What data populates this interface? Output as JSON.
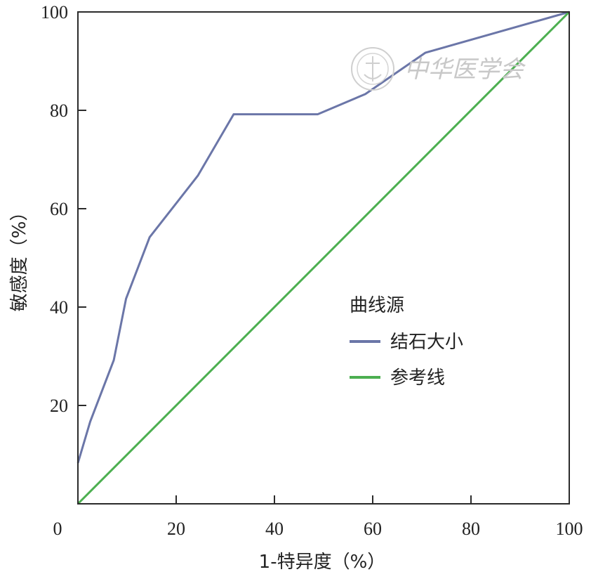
{
  "chart_data": {
    "type": "line",
    "title": "",
    "xlabel": "1-特异度（%）",
    "ylabel": "敏感度（%）",
    "xlim": [
      0,
      100
    ],
    "ylim": [
      0,
      100
    ],
    "x_ticks": [
      0,
      20,
      40,
      60,
      80,
      100
    ],
    "y_ticks": [
      20,
      40,
      60,
      80,
      100
    ],
    "grid": false,
    "legend": {
      "title": "曲线源",
      "placement": "center-right",
      "entries": [
        "结石大小",
        "参考线"
      ]
    },
    "series": [
      {
        "name": "结石大小",
        "color": "#6b76a8",
        "x": [
          0,
          2.5,
          7.3,
          9.8,
          14.6,
          24.4,
          31.7,
          48.8,
          58.5,
          70.7,
          100
        ],
        "y": [
          8.3,
          16.7,
          29.2,
          41.7,
          54.2,
          66.7,
          79.2,
          79.2,
          83.3,
          91.7,
          100
        ]
      },
      {
        "name": "参考线",
        "color": "#4caf50",
        "x": [
          0,
          100
        ],
        "y": [
          0,
          100
        ]
      }
    ]
  },
  "watermark": {
    "text": "中华医学会",
    "seal_icon": "society-seal-icon"
  }
}
